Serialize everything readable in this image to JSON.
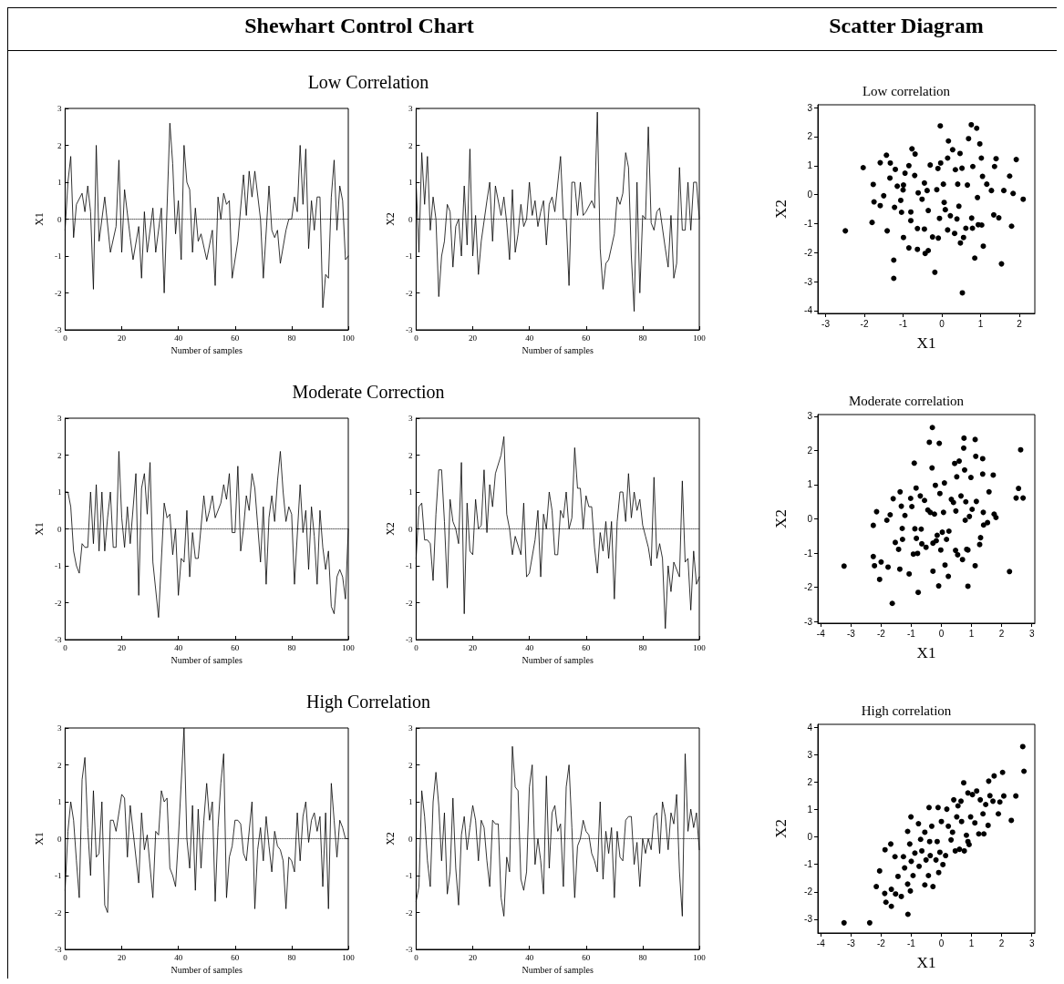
{
  "chart_data": [
    {
      "type": "line",
      "title": "Low Correlation",
      "annotations": [
        "Shewhart Control Chart"
      ],
      "xlabel": "Number of samples",
      "ylabel": "X1",
      "xlim": [
        0,
        100
      ],
      "ylim": [
        -3,
        3
      ],
      "xticks": [
        0,
        20,
        40,
        60,
        80,
        100
      ],
      "yticks": [
        -3,
        -2,
        -1,
        0,
        1,
        2,
        3
      ],
      "marker": "none",
      "line_style": "solid",
      "ref_lines": [
        {
          "axis": "y",
          "value": 0,
          "line_style": "dotted",
          "color": "#000000"
        }
      ],
      "series": [
        {
          "color": "#000000",
          "x": [
            0,
            1,
            2,
            3,
            4,
            6,
            7,
            8,
            9,
            10,
            11,
            12,
            14,
            16,
            18,
            19,
            20,
            21,
            23,
            24,
            26,
            27,
            28,
            29,
            31,
            32,
            34,
            35,
            37,
            38,
            39,
            40,
            41,
            42,
            43,
            44,
            45,
            46,
            47,
            48,
            50,
            52,
            53,
            54,
            55,
            56,
            57,
            58,
            59,
            61,
            63,
            64,
            65,
            66,
            67,
            69,
            70,
            72,
            73,
            74,
            75,
            76,
            78,
            79,
            80,
            81,
            82,
            83,
            84,
            85,
            86,
            87,
            88,
            89,
            90,
            91,
            92,
            93,
            94,
            95,
            96,
            97,
            98,
            99,
            100
          ],
          "values": [
            -0.3,
            1.0,
            1.7,
            -0.5,
            0.4,
            0.7,
            0.2,
            0.9,
            0.2,
            -1.9,
            2.0,
            -0.6,
            0.6,
            -0.9,
            -0.2,
            1.6,
            -0.9,
            0.8,
            -0.5,
            -1.1,
            -0.2,
            -1.6,
            0.2,
            -0.9,
            0.3,
            -0.9,
            0.3,
            -2.0,
            2.6,
            1.5,
            -0.4,
            0.5,
            -1.1,
            2.0,
            1.0,
            0.8,
            -0.9,
            0.3,
            -0.6,
            -0.4,
            -1.1,
            -0.3,
            -1.8,
            0.6,
            0.0,
            0.7,
            0.4,
            0.5,
            -1.6,
            -0.6,
            1.2,
            0.1,
            1.3,
            0.6,
            1.3,
            0.0,
            -1.6,
            0.9,
            -0.3,
            -0.5,
            -0.3,
            -1.2,
            -0.3,
            0.0,
            0.0,
            0.6,
            0.2,
            2.0,
            0.4,
            1.9,
            -0.8,
            0.5,
            -0.3,
            0.6,
            0.6,
            -2.4,
            -1.5,
            -1.6,
            0.6,
            1.6,
            -0.3,
            0.9,
            0.5,
            -1.1,
            -1.0
          ]
        }
      ]
    },
    {
      "type": "line",
      "xlabel": "Number of samples",
      "ylabel": "X2",
      "xlim": [
        0,
        100
      ],
      "ylim": [
        -3,
        3
      ],
      "xticks": [
        0,
        20,
        40,
        60,
        80,
        100
      ],
      "yticks": [
        -3,
        -2,
        -1,
        0,
        1,
        2,
        3
      ],
      "marker": "none",
      "line_style": "solid",
      "ref_lines": [
        {
          "axis": "y",
          "value": 0,
          "line_style": "dotted",
          "color": "#000000"
        }
      ],
      "series": [
        {
          "color": "#000000",
          "x": [
            0,
            1,
            2,
            3,
            4,
            5,
            6,
            7,
            8,
            9,
            10,
            11,
            12,
            13,
            14,
            15,
            16,
            17,
            18,
            19,
            20,
            21,
            22,
            23,
            25,
            26,
            27,
            28,
            30,
            31,
            32,
            33,
            34,
            35,
            36,
            37,
            38,
            39,
            40,
            41,
            42,
            43,
            44,
            45,
            46,
            47,
            48,
            49,
            51,
            52,
            53,
            54,
            55,
            56,
            57,
            58,
            59,
            60,
            62,
            63,
            64,
            65,
            66,
            67,
            68,
            70,
            71,
            72,
            73,
            74,
            75,
            76,
            77,
            78,
            79,
            80,
            81,
            82,
            83,
            84,
            85,
            86,
            88,
            89,
            90,
            91,
            92,
            93,
            94,
            95,
            96,
            97,
            98,
            99,
            100
          ],
          "values": [
            1.0,
            -0.9,
            1.8,
            0.4,
            1.7,
            -0.3,
            0.6,
            0.0,
            -2.1,
            -1.0,
            -0.6,
            0.4,
            0.2,
            -1.3,
            -0.2,
            0.0,
            -1.0,
            0.9,
            -0.7,
            1.9,
            -1.0,
            0.1,
            -1.5,
            -0.6,
            0.5,
            1.0,
            -0.6,
            0.9,
            0.1,
            0.6,
            -0.1,
            -1.1,
            0.8,
            -0.9,
            -0.4,
            0.4,
            -0.2,
            0.0,
            1.0,
            0.1,
            0.5,
            -0.2,
            0.2,
            0.5,
            -0.7,
            0.4,
            0.6,
            0.2,
            1.7,
            0.0,
            0.0,
            -1.8,
            1.0,
            1.0,
            0.1,
            1.0,
            0.1,
            0.2,
            0.5,
            0.3,
            2.9,
            -0.8,
            -1.9,
            -1.2,
            -1.1,
            -0.4,
            0.6,
            0.4,
            0.7,
            1.8,
            1.4,
            -1.0,
            -2.5,
            1.0,
            -2.0,
            0.1,
            0.0,
            2.5,
            -0.1,
            -0.3,
            0.2,
            0.3,
            -0.8,
            -1.3,
            0.1,
            -1.6,
            -1.2,
            1.4,
            -0.3,
            -0.3,
            1.0,
            -0.3,
            1.0,
            1.0,
            0.0
          ]
        }
      ]
    },
    {
      "type": "scatter",
      "title": "Low correlation",
      "annotations": [
        "Scatter Diagram"
      ],
      "xlabel": "X1",
      "ylabel": "X2",
      "xlim": [
        -3.2,
        2.4
      ],
      "ylim": [
        -4.1,
        3.1
      ],
      "xticks": [
        -3,
        -2,
        -1,
        0,
        1,
        2
      ],
      "yticks": [
        -4,
        -3,
        -2,
        -1,
        0,
        1,
        2,
        3
      ],
      "marker": "circle",
      "color": "#000000",
      "x": [
        -2.49,
        -2.03,
        -1.8,
        -1.77,
        -1.75,
        -1.59,
        -1.59,
        -1.5,
        -1.41,
        -1.43,
        -1.34,
        -1.33,
        -1.24,
        -1.24,
        -1.22,
        -1.2,
        -1.15,
        -1.06,
        -1.04,
        -0.99,
        -1.0,
        -0.95,
        -0.85,
        -0.85,
        -0.8,
        -0.8,
        -0.77,
        -0.69,
        -0.7,
        -0.63,
        -0.63,
        -0.61,
        -0.51,
        -0.45,
        -0.45,
        -0.43,
        -0.35,
        -0.38,
        -0.35,
        -0.3,
        -0.24,
        -0.18,
        -0.13,
        -0.1,
        -0.09,
        -0.06,
        -0.04,
        -0.03,
        0.04,
        0.06,
        0.09,
        0.15,
        0.15,
        0.17,
        0.22,
        0.28,
        0.33,
        0.35,
        0.39,
        0.41,
        0.44,
        0.47,
        0.48,
        0.52,
        0.53,
        0.56,
        0.62,
        0.66,
        0.69,
        0.76,
        0.77,
        0.8,
        0.79,
        0.85,
        0.9,
        0.92,
        0.94,
        0.98,
        1.02,
        1.03,
        1.05,
        1.07,
        1.16,
        1.28,
        1.34,
        1.36,
        1.4,
        1.47,
        1.54,
        1.75,
        1.8,
        1.84,
        1.92,
        2.1,
        1.6,
        -0.99
      ],
      "values": [
        -1.25,
        0.93,
        -0.96,
        0.35,
        -0.25,
        1.1,
        -0.38,
        -0.04,
        -1.25,
        1.36,
        0.57,
        1.09,
        -2.26,
        -2.89,
        -0.44,
        0.87,
        0.29,
        -0.2,
        -0.61,
        -1.48,
        0.16,
        0.74,
        1.0,
        -1.84,
        -0.6,
        -0.9,
        1.58,
        1.4,
        0.66,
        -1.17,
        -1.89,
        0.06,
        -0.16,
        0.4,
        -1.19,
        -2.03,
        -1.93,
        0.14,
        -0.55,
        1.02,
        -1.46,
        -2.68,
        0.17,
        0.9,
        -1.5,
        -0.82,
        2.37,
        1.09,
        0.36,
        -0.27,
        -0.52,
        1.26,
        -1.22,
        1.85,
        -0.73,
        1.55,
        -1.34,
        0.86,
        -0.84,
        0.36,
        -0.4,
        1.42,
        -1.67,
        0.91,
        -3.39,
        -1.48,
        -1.16,
        0.33,
        1.93,
        2.41,
        -0.81,
        0.97,
        -1.16,
        -2.19,
        2.29,
        -0.1,
        -1.04,
        1.75,
        1.26,
        -1.05,
        0.63,
        -1.78,
        0.36,
        0.14,
        -0.7,
        0.97,
        1.24,
        -0.8,
        -2.39,
        0.64,
        -1.09,
        0.04,
        1.21,
        -0.16,
        0.14,
        0.33
      ]
    },
    {
      "type": "line",
      "title": "Moderate Correction",
      "xlabel": "Number of samples",
      "ylabel": "X1",
      "xlim": [
        0,
        100
      ],
      "ylim": [
        -3,
        3
      ],
      "xticks": [
        0,
        20,
        40,
        60,
        80,
        100
      ],
      "yticks": [
        -3,
        -2,
        -1,
        0,
        1,
        2,
        3
      ],
      "marker": "none",
      "line_style": "solid",
      "ref_lines": [
        {
          "axis": "y",
          "value": 0,
          "line_style": "dotted",
          "color": "#000000"
        }
      ],
      "series": [
        {
          "color": "#000000",
          "x": [
            0,
            1,
            2,
            3,
            4,
            5,
            6,
            7,
            8,
            9,
            10,
            11,
            12,
            13,
            14,
            15,
            16,
            17,
            18,
            19,
            20,
            21,
            22,
            23,
            25,
            26,
            27,
            28,
            29,
            30,
            31,
            33,
            35,
            36,
            37,
            38,
            39,
            40,
            41,
            42,
            43,
            44,
            45,
            46,
            47,
            49,
            50,
            51,
            52,
            53,
            55,
            56,
            57,
            58,
            59,
            60,
            61,
            62,
            63,
            64,
            65,
            66,
            67,
            68,
            69,
            70,
            71,
            72,
            73,
            74,
            75,
            76,
            77,
            78,
            79,
            80,
            81,
            83,
            84,
            85,
            86,
            87,
            88,
            89,
            90,
            91,
            92,
            93,
            94,
            95,
            96,
            97,
            98,
            99,
            100
          ],
          "values": [
            1.0,
            1.0,
            0.6,
            -0.6,
            -1.0,
            -1.2,
            -0.4,
            -0.5,
            -0.5,
            1.0,
            -0.4,
            1.2,
            -0.6,
            1.0,
            -0.6,
            0.3,
            1.0,
            -0.5,
            -0.5,
            2.1,
            0.3,
            -0.5,
            0.6,
            -0.4,
            1.5,
            -1.8,
            1.1,
            1.5,
            0.4,
            1.8,
            -0.9,
            -2.4,
            0.7,
            0.3,
            0.4,
            -0.7,
            0.0,
            -1.8,
            -0.8,
            -0.9,
            0.5,
            -1.3,
            -0.1,
            -0.8,
            -0.8,
            0.9,
            0.2,
            0.5,
            0.9,
            0.3,
            0.7,
            1.2,
            0.8,
            1.5,
            -0.1,
            -0.1,
            1.7,
            -0.6,
            0.0,
            0.9,
            0.5,
            1.5,
            1.1,
            0.1,
            -0.9,
            0.6,
            -1.5,
            0.3,
            0.9,
            0.2,
            1.3,
            2.1,
            1.0,
            0.2,
            0.6,
            0.4,
            -1.5,
            1.2,
            -0.1,
            0.5,
            -1.1,
            0.6,
            -0.2,
            -1.5,
            0.5,
            -0.5,
            -1.1,
            -0.6,
            -2.1,
            -2.3,
            -1.3,
            -1.1,
            -1.3,
            -1.9,
            0.0
          ]
        }
      ]
    },
    {
      "type": "line",
      "xlabel": "Number of samples",
      "ylabel": "X2",
      "xlim": [
        0,
        100
      ],
      "ylim": [
        -3,
        3
      ],
      "xticks": [
        0,
        20,
        40,
        60,
        80,
        100
      ],
      "yticks": [
        -3,
        -2,
        -1,
        0,
        1,
        2,
        3
      ],
      "marker": "none",
      "line_style": "solid",
      "ref_lines": [
        {
          "axis": "y",
          "value": 0,
          "line_style": "dotted",
          "color": "#000000"
        }
      ],
      "series": [
        {
          "color": "#000000",
          "x": [
            0,
            1,
            2,
            3,
            4,
            5,
            6,
            7,
            8,
            9,
            10,
            11,
            12,
            13,
            14,
            15,
            16,
            17,
            18,
            19,
            20,
            21,
            22,
            23,
            24,
            25,
            26,
            27,
            28,
            30,
            31,
            32,
            33,
            34,
            35,
            37,
            38,
            39,
            40,
            42,
            43,
            44,
            45,
            46,
            47,
            48,
            49,
            50,
            51,
            52,
            53,
            54,
            55,
            56,
            57,
            58,
            59,
            60,
            61,
            62,
            63,
            64,
            65,
            66,
            67,
            68,
            69,
            70,
            71,
            72,
            73,
            74,
            75,
            76,
            77,
            78,
            79,
            80,
            81,
            82,
            83,
            84,
            85,
            86,
            87,
            88,
            89,
            90,
            91,
            92,
            93,
            94,
            95,
            96,
            97,
            98,
            99,
            100
          ],
          "values": [
            -0.8,
            0.6,
            0.7,
            -0.3,
            -0.3,
            -0.4,
            -1.4,
            0.4,
            1.6,
            1.6,
            0.2,
            -1.6,
            0.8,
            0.2,
            0.0,
            -0.4,
            1.8,
            -2.3,
            0.7,
            -0.6,
            -0.7,
            0.8,
            0.0,
            0.1,
            1.6,
            -0.1,
            1.2,
            0.6,
            1.5,
            2.0,
            2.5,
            0.4,
            0.0,
            -0.7,
            -0.2,
            -0.7,
            0.7,
            -1.3,
            -1.2,
            -0.3,
            0.5,
            -1.3,
            0.4,
            0.0,
            1.0,
            0.5,
            -0.7,
            -0.7,
            0.5,
            0.3,
            1.0,
            0.0,
            0.3,
            2.2,
            1.1,
            1.1,
            0.0,
            0.9,
            0.6,
            0.6,
            -0.5,
            -1.2,
            -0.1,
            -0.6,
            0.2,
            -0.8,
            0.2,
            -1.9,
            0.2,
            1.0,
            1.0,
            0.2,
            1.5,
            0.3,
            1.0,
            0.5,
            0.8,
            0.1,
            -0.2,
            -0.5,
            -1.0,
            1.4,
            -0.8,
            -0.4,
            -0.8,
            -2.7,
            -1.0,
            -1.7,
            -0.9,
            -1.1,
            -1.3,
            1.3,
            -0.9,
            -0.8,
            -2.2,
            -0.6,
            -1.5,
            -1.3
          ]
        }
      ]
    },
    {
      "type": "scatter",
      "title": "Moderate correlation",
      "xlabel": "X1",
      "ylabel": "X2",
      "xlim": [
        -4.1,
        3.1
      ],
      "ylim": [
        -3.05,
        3.05
      ],
      "xticks": [
        -4,
        -3,
        -2,
        -1,
        0,
        1,
        2,
        3
      ],
      "yticks": [
        -3,
        -2,
        -1,
        0,
        1,
        2,
        3
      ],
      "marker": "circle",
      "color": "#000000",
      "x": [
        -3.23,
        -2.26,
        -2.26,
        -2.22,
        -2.15,
        -2.05,
        -2.0,
        -1.81,
        -1.77,
        -1.7,
        -1.63,
        -1.6,
        -1.53,
        -1.42,
        -1.38,
        -1.37,
        -1.33,
        -1.3,
        -1.29,
        -1.21,
        -1.07,
        -1.02,
        -0.98,
        -0.93,
        -0.9,
        -0.88,
        -0.84,
        -0.83,
        -0.79,
        -0.77,
        -0.7,
        -0.67,
        -0.65,
        -0.56,
        -0.51,
        -0.45,
        -0.4,
        -0.37,
        -0.31,
        -0.28,
        -0.28,
        -0.23,
        -0.2,
        -0.17,
        -0.14,
        -0.09,
        -0.07,
        -0.05,
        -0.02,
        0.03,
        0.07,
        0.1,
        0.12,
        0.17,
        0.23,
        0.25,
        0.33,
        0.4,
        0.44,
        0.47,
        0.48,
        0.51,
        0.54,
        0.59,
        0.65,
        0.7,
        0.74,
        0.75,
        0.77,
        0.79,
        0.81,
        0.84,
        0.88,
        0.88,
        0.93,
        0.98,
        1.02,
        1.12,
        1.12,
        1.14,
        1.16,
        1.27,
        1.3,
        1.37,
        1.37,
        1.39,
        1.4,
        1.53,
        1.58,
        1.72,
        1.75,
        1.81,
        2.26,
        2.56,
        2.48,
        2.71,
        2.63,
        -0.3
      ],
      "values": [
        -1.38,
        -0.19,
        -1.1,
        -1.37,
        0.21,
        -1.77,
        -1.26,
        -0.04,
        -1.41,
        0.12,
        -2.47,
        0.59,
        -0.69,
        -0.89,
        -1.47,
        0.79,
        0.37,
        -0.28,
        -0.6,
        0.1,
        -1.61,
        0.6,
        0.36,
        -1.03,
        1.63,
        -0.29,
        0.9,
        -0.57,
        -1.01,
        -2.15,
        0.67,
        -0.3,
        -0.73,
        0.54,
        -0.83,
        0.26,
        2.24,
        0.19,
        1.49,
        -1.53,
        -0.71,
        0.14,
        0.98,
        -0.64,
        -0.48,
        -1.96,
        2.21,
        0.74,
        -0.91,
        -0.39,
        0.19,
        1.05,
        -1.35,
        -0.6,
        -1.68,
        -0.36,
        0.57,
        0.48,
        1.62,
        -0.92,
        0.23,
        1.23,
        -1.05,
        1.69,
        0.67,
        -1.19,
        2.07,
        2.36,
        1.43,
        -0.04,
        0.5,
        -0.89,
        -0.91,
        -1.97,
        0.07,
        1.21,
        0.28,
        2.32,
        -1.37,
        1.83,
        0.51,
        -0.75,
        -0.55,
        1.76,
        1.31,
        0.19,
        -0.18,
        -0.11,
        0.79,
        1.28,
        0.14,
        0.04,
        -1.54,
        0.89,
        0.61,
        0.61,
        2.02,
        2.67
      ]
    },
    {
      "type": "line",
      "title": "High Correlation",
      "xlabel": "Number of samples",
      "ylabel": "X1",
      "xlim": [
        0,
        100
      ],
      "ylim": [
        -3,
        3
      ],
      "xticks": [
        0,
        20,
        40,
        60,
        80,
        100
      ],
      "yticks": [
        -3,
        -2,
        -1,
        0,
        1,
        2,
        3
      ],
      "marker": "none",
      "line_style": "solid",
      "ref_lines": [
        {
          "axis": "y",
          "value": 0,
          "line_style": "dotted",
          "color": "#000000"
        }
      ],
      "series": [
        {
          "color": "#000000",
          "x": [
            0,
            1,
            2,
            3,
            4,
            5,
            6,
            7,
            8,
            9,
            10,
            11,
            12,
            13,
            14,
            15,
            16,
            17,
            18,
            20,
            21,
            22,
            23,
            24,
            26,
            27,
            28,
            29,
            31,
            32,
            33,
            34,
            35,
            36,
            37,
            38,
            39,
            40,
            42,
            43,
            44,
            45,
            46,
            47,
            48,
            49,
            50,
            51,
            52,
            53,
            54,
            55,
            56,
            57,
            58,
            59,
            60,
            61,
            62,
            63,
            64,
            66,
            67,
            68,
            69,
            70,
            71,
            72,
            73,
            74,
            75,
            76,
            77,
            78,
            79,
            80,
            81,
            82,
            83,
            84,
            85,
            86,
            87,
            88,
            89,
            90,
            91,
            92,
            93,
            94,
            95,
            96,
            97,
            98,
            99,
            100
          ],
          "values": [
            -1.4,
            0.2,
            1.0,
            0.5,
            -0.6,
            -1.6,
            1.6,
            2.2,
            0.3,
            -1.0,
            1.3,
            -0.5,
            -0.4,
            1.0,
            -1.8,
            -2.0,
            0.5,
            0.5,
            0.2,
            1.2,
            1.1,
            -0.5,
            0.9,
            0.2,
            -1.2,
            0.7,
            -0.3,
            0.1,
            -1.6,
            0.2,
            0.1,
            1.3,
            1.0,
            1.1,
            -0.8,
            -1.0,
            -1.3,
            0.0,
            3.0,
            0.0,
            -0.8,
            0.9,
            -1.4,
            0.8,
            -0.8,
            0.5,
            1.5,
            0.5,
            1.0,
            -1.7,
            0.3,
            1.5,
            2.3,
            -1.6,
            -0.5,
            -0.2,
            0.5,
            0.5,
            0.4,
            -0.4,
            -0.6,
            1.0,
            -1.9,
            -0.3,
            0.3,
            -0.6,
            0.6,
            -0.2,
            -0.9,
            0.2,
            -0.2,
            -0.3,
            -0.6,
            -1.9,
            -0.5,
            -0.6,
            -0.9,
            0.7,
            -0.6,
            0.6,
            1.0,
            -0.1,
            0.5,
            0.7,
            0.2,
            0.6,
            -1.3,
            0.7,
            -1.9,
            1.5,
            0.5,
            -0.5,
            0.5,
            0.3,
            0.0,
            0.0
          ]
        }
      ]
    },
    {
      "type": "line",
      "xlabel": "Number of samples",
      "ylabel": "X2",
      "xlim": [
        0,
        100
      ],
      "ylim": [
        -3,
        3
      ],
      "xticks": [
        0,
        20,
        40,
        60,
        80,
        100
      ],
      "yticks": [
        -3,
        -2,
        -1,
        0,
        1,
        2,
        3
      ],
      "marker": "none",
      "line_style": "solid",
      "ref_lines": [
        {
          "axis": "y",
          "value": 0,
          "line_style": "dotted",
          "color": "#000000"
        }
      ],
      "series": [
        {
          "color": "#000000",
          "x": [
            0,
            1,
            2,
            3,
            4,
            5,
            6,
            7,
            8,
            9,
            10,
            11,
            12,
            13,
            14,
            15,
            16,
            17,
            18,
            19,
            20,
            21,
            22,
            23,
            24,
            25,
            26,
            27,
            28,
            29,
            30,
            31,
            32,
            33,
            34,
            35,
            36,
            37,
            38,
            39,
            40,
            41,
            42,
            43,
            44,
            45,
            46,
            47,
            48,
            49,
            50,
            51,
            52,
            53,
            54,
            55,
            56,
            57,
            58,
            59,
            60,
            61,
            62,
            63,
            64,
            65,
            66,
            67,
            68,
            69,
            70,
            71,
            72,
            73,
            74,
            75,
            76,
            77,
            78,
            79,
            80,
            81,
            82,
            83,
            84,
            85,
            86,
            87,
            88,
            89,
            90,
            91,
            92,
            93,
            94,
            95,
            96,
            97,
            98,
            99,
            100
          ],
          "values": [
            -1.7,
            -1.3,
            1.3,
            0.6,
            -0.6,
            -1.3,
            1.0,
            1.8,
            0.9,
            -0.6,
            0.7,
            -1.5,
            -0.9,
            1.1,
            -0.8,
            -1.8,
            0.1,
            0.6,
            -0.3,
            0.3,
            0.9,
            0.5,
            -0.6,
            0.5,
            0.3,
            -0.6,
            -1.3,
            0.5,
            0.4,
            0.4,
            -1.6,
            -2.1,
            -0.5,
            -0.9,
            2.5,
            1.4,
            1.3,
            -1.1,
            -1.4,
            -0.9,
            1.4,
            2.0,
            -0.7,
            0.0,
            -0.6,
            -1.5,
            1.7,
            -0.8,
            0.7,
            0.9,
            0.2,
            0.4,
            -1.3,
            1.4,
            2.0,
            0.3,
            -1.6,
            -0.2,
            0.0,
            0.5,
            0.2,
            0.1,
            -0.4,
            -0.6,
            -0.9,
            1.0,
            -1.1,
            0.2,
            -0.4,
            0.3,
            -1.6,
            0.2,
            -0.5,
            -0.6,
            0.5,
            0.6,
            0.6,
            -0.7,
            -0.1,
            -1.3,
            0.0,
            -0.4,
            0.0,
            -0.3,
            0.6,
            0.7,
            -0.4,
            1.0,
            0.6,
            -0.3,
            0.7,
            0.4,
            1.2,
            -0.9,
            -2.1,
            2.3,
            0.2,
            0.8,
            0.3,
            0.7,
            -0.3
          ]
        }
      ]
    },
    {
      "type": "scatter",
      "title": "High correlation",
      "xlabel": "X1",
      "ylabel": "X2",
      "xlim": [
        -4.1,
        3.1
      ],
      "ylim": [
        -3.5,
        4.1
      ],
      "xticks": [
        -4,
        -3,
        -2,
        -1,
        0,
        1,
        2,
        3
      ],
      "yticks": [
        -3,
        -2,
        -1,
        0,
        1,
        2,
        3,
        4
      ],
      "marker": "circle",
      "color": "#000000",
      "x": [
        -3.23,
        -2.38,
        -2.16,
        -2.05,
        -1.88,
        -1.84,
        -1.87,
        -1.68,
        -1.66,
        -1.66,
        -1.54,
        -1.52,
        -1.44,
        -1.33,
        -1.26,
        -1.22,
        -1.12,
        -1.12,
        -1.11,
        -1.03,
        -1.01,
        -1.05,
        -1.0,
        -0.94,
        -0.88,
        -0.76,
        -0.74,
        -0.69,
        -0.65,
        -0.55,
        -0.55,
        -0.51,
        -0.43,
        -0.41,
        -0.39,
        -0.37,
        -0.32,
        -0.28,
        -0.18,
        -0.14,
        -0.11,
        -0.09,
        -0.05,
        0.0,
        0.05,
        0.14,
        0.18,
        0.23,
        0.32,
        0.37,
        0.41,
        0.46,
        0.51,
        0.55,
        0.6,
        0.65,
        0.67,
        0.76,
        0.74,
        0.83,
        0.88,
        0.88,
        0.97,
        1.03,
        1.11,
        1.17,
        1.24,
        1.29,
        1.38,
        1.41,
        1.47,
        1.55,
        1.57,
        1.61,
        1.75,
        1.71,
        1.89,
        1.94,
        2.03,
        2.07,
        2.32,
        2.47,
        2.7,
        2.74,
        0.92
      ],
      "values": [
        -3.13,
        -3.13,
        -1.81,
        -1.24,
        -2.06,
        -2.38,
        -0.47,
        -0.26,
        -1.91,
        -2.53,
        -0.72,
        -2.08,
        -1.44,
        -2.17,
        -0.72,
        -1.13,
        0.2,
        -1.72,
        -2.82,
        -1.97,
        0.73,
        -0.26,
        -0.89,
        -1.41,
        -0.59,
        0.48,
        -1.07,
        -0.09,
        -0.51,
        0.17,
        -1.75,
        -0.84,
        -1.41,
        1.07,
        -0.17,
        -0.68,
        0.39,
        -1.81,
        -0.84,
        -0.17,
        1.07,
        -1.3,
        -0.56,
        0.56,
        -1.01,
        -0.68,
        1.01,
        0.39,
        -0.11,
        0.17,
        1.35,
        -0.51,
        0.73,
        1.13,
        -0.45,
        1.3,
        0.56,
        -0.51,
        1.97,
        0.06,
        1.6,
        -0.17,
        0.73,
        1.54,
        0.51,
        1.67,
        0.11,
        1.35,
        0.84,
        0.11,
        1.18,
        0.42,
        2.03,
        1.5,
        2.22,
        1.3,
        0.84,
        1.27,
        2.35,
        1.49,
        0.6,
        1.49,
        3.29,
        2.39,
        -0.28
      ]
    }
  ]
}
